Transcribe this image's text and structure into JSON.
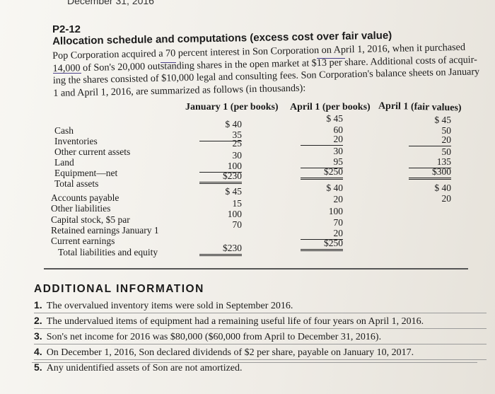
{
  "header_crop": "December 31, 2016",
  "problem": {
    "number": "P2-12",
    "title": "Allocation schedule and computations (excess cost over fair value)",
    "intro": [
      "Pop Corporation acquired a 70 percent interest in Son Corporation on April 1, 2016, when it purchased",
      "14,000 of Son's 20,000 outstanding shares in the open market at $13 per share. Additional costs of acquir-",
      "ing the shares consisted of $10,000 legal and consulting fees. Son Corporation's balance sheets on January",
      "1 and April 1, 2016, are summarized as follows (in thousands):"
    ]
  },
  "table": {
    "headers": [
      "January 1 (per books)",
      "April 1 (per books)",
      "April 1 (fair values)"
    ],
    "rows": [
      {
        "label": "Cash",
        "jan": "$ 40",
        "apr_books": "$ 45",
        "apr_fair": "$ 45"
      },
      {
        "label": "Inventories",
        "jan": "35",
        "apr_books": "60",
        "apr_fair": "50"
      },
      {
        "label": "Other current assets",
        "jan": "25",
        "apr_books": "20",
        "apr_fair": "20"
      },
      {
        "label": "Land",
        "jan": "30",
        "apr_books": "30",
        "apr_fair": "50"
      },
      {
        "label": "Equipment—net",
        "jan": "100",
        "apr_books": "95",
        "apr_fair": "135"
      },
      {
        "label": "Total assets",
        "jan": "$230",
        "apr_books": "$250",
        "apr_fair": "$300"
      },
      {
        "label": "Accounts payable",
        "jan": "$ 45",
        "apr_books": "$ 40",
        "apr_fair": "$ 40"
      },
      {
        "label": "Other liabilities",
        "jan": "15",
        "apr_books": "20",
        "apr_fair": "20"
      },
      {
        "label": "Capital stock, $5 par",
        "jan": "100",
        "apr_books": "100",
        "apr_fair": ""
      },
      {
        "label": "Retained earnings January 1",
        "jan": "70",
        "apr_books": "70",
        "apr_fair": ""
      },
      {
        "label": "Current earnings",
        "jan": "",
        "apr_books": "20",
        "apr_fair": ""
      },
      {
        "label": "Total liabilities and equity",
        "jan": "$230",
        "apr_books": "$250",
        "apr_fair": ""
      }
    ]
  },
  "additional": {
    "title": "ADDITIONAL INFORMATION",
    "items": [
      {
        "num": "1.",
        "text": "The overvalued inventory items were sold in September 2016."
      },
      {
        "num": "2.",
        "text": "The undervalued items of equipment had a remaining useful life of four years on April 1, 2016."
      },
      {
        "num": "3.",
        "text": "Son's net income for 2016 was $80,000 ($60,000 from April to December 31, 2016)."
      },
      {
        "num": "4.",
        "text": "On December 1, 2016, Son declared dividends of $2 per share, payable on January 10, 2017."
      },
      {
        "num": "5.",
        "text": "Any unidentified assets of Son are not amortized."
      }
    ]
  }
}
